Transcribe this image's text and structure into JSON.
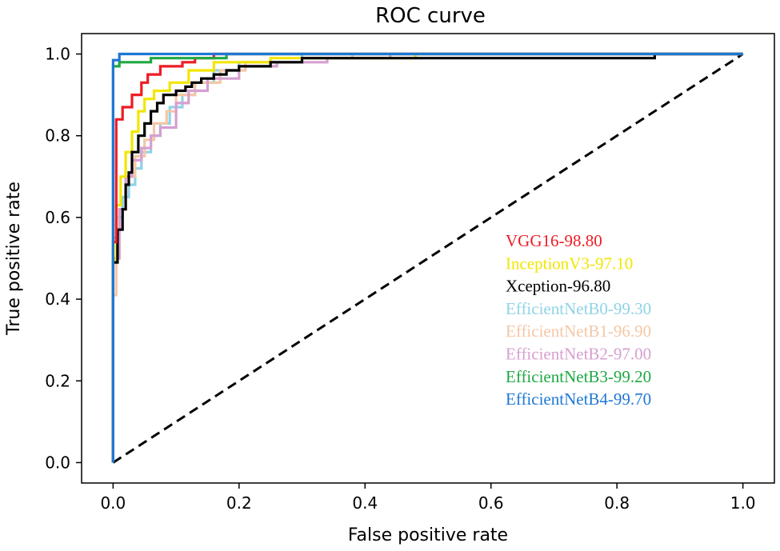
{
  "chart_data": {
    "type": "line",
    "title": "ROC curve",
    "xlabel": "False positive rate",
    "ylabel": "True positive rate",
    "xlim": [
      -0.05,
      1.05
    ],
    "ylim": [
      -0.05,
      1.05
    ],
    "xticks": [
      {
        "value": 0.0,
        "label": "0.0"
      },
      {
        "value": 0.2,
        "label": "0.2"
      },
      {
        "value": 0.4,
        "label": "0.4"
      },
      {
        "value": 0.6,
        "label": "0.6"
      },
      {
        "value": 0.8,
        "label": "0.8"
      },
      {
        "value": 1.0,
        "label": "1.0"
      }
    ],
    "yticks": [
      {
        "value": 0.0,
        "label": "0.0"
      },
      {
        "value": 0.2,
        "label": "0.2"
      },
      {
        "value": 0.4,
        "label": "0.4"
      },
      {
        "value": 0.6,
        "label": "0.6"
      },
      {
        "value": 0.8,
        "label": "0.8"
      },
      {
        "value": 1.0,
        "label": "1.0"
      }
    ],
    "grid": false,
    "legend_position": "center-right",
    "reference_line": {
      "name": "chance",
      "color": "#000000",
      "dashed": true,
      "points": [
        [
          0,
          0
        ],
        [
          1,
          1
        ]
      ]
    },
    "series": [
      {
        "name": "EfficientNetB0",
        "legend": "EfficientNetB0-99.30",
        "auc": 99.3,
        "color": "#8fd3e8",
        "points": [
          [
            0,
            0
          ],
          [
            0,
            0.55
          ],
          [
            0.005,
            0.55
          ],
          [
            0.005,
            0.6
          ],
          [
            0.015,
            0.6
          ],
          [
            0.015,
            0.65
          ],
          [
            0.025,
            0.65
          ],
          [
            0.025,
            0.68
          ],
          [
            0.035,
            0.68
          ],
          [
            0.035,
            0.72
          ],
          [
            0.045,
            0.72
          ],
          [
            0.045,
            0.76
          ],
          [
            0.06,
            0.76
          ],
          [
            0.06,
            0.8
          ],
          [
            0.075,
            0.8
          ],
          [
            0.075,
            0.83
          ],
          [
            0.09,
            0.83
          ],
          [
            0.09,
            0.87
          ],
          [
            0.11,
            0.87
          ],
          [
            0.11,
            0.9
          ],
          [
            0.13,
            0.9
          ],
          [
            0.13,
            0.93
          ],
          [
            0.16,
            0.93
          ],
          [
            0.16,
            0.96
          ],
          [
            0.2,
            0.96
          ],
          [
            0.2,
            0.98
          ],
          [
            0.3,
            0.98
          ],
          [
            0.3,
            1.0
          ],
          [
            1,
            1.0
          ]
        ]
      },
      {
        "name": "EfficientNetB1",
        "legend": "EfficientNetB1-96.90",
        "auc": 96.9,
        "color": "#f4c7a6",
        "points": [
          [
            0,
            0
          ],
          [
            0,
            0.41
          ],
          [
            0.005,
            0.41
          ],
          [
            0.005,
            0.5
          ],
          [
            0.01,
            0.5
          ],
          [
            0.01,
            0.62
          ],
          [
            0.02,
            0.62
          ],
          [
            0.02,
            0.7
          ],
          [
            0.035,
            0.7
          ],
          [
            0.035,
            0.75
          ],
          [
            0.05,
            0.75
          ],
          [
            0.05,
            0.79
          ],
          [
            0.065,
            0.79
          ],
          [
            0.065,
            0.83
          ],
          [
            0.085,
            0.83
          ],
          [
            0.085,
            0.86
          ],
          [
            0.1,
            0.86
          ],
          [
            0.1,
            0.9
          ],
          [
            0.13,
            0.9
          ],
          [
            0.13,
            0.93
          ],
          [
            0.17,
            0.93
          ],
          [
            0.17,
            0.96
          ],
          [
            0.21,
            0.96
          ],
          [
            0.21,
            0.98
          ],
          [
            0.3,
            0.98
          ],
          [
            0.3,
            0.99
          ],
          [
            0.38,
            0.99
          ],
          [
            0.38,
            1.0
          ],
          [
            1,
            1.0
          ]
        ]
      },
      {
        "name": "EfficientNetB2",
        "legend": "EfficientNetB2-97.00",
        "auc": 97.0,
        "color": "#d69fd0",
        "points": [
          [
            0,
            0
          ],
          [
            0,
            0.5
          ],
          [
            0.01,
            0.5
          ],
          [
            0.01,
            0.62
          ],
          [
            0.02,
            0.62
          ],
          [
            0.02,
            0.7
          ],
          [
            0.03,
            0.7
          ],
          [
            0.03,
            0.74
          ],
          [
            0.045,
            0.74
          ],
          [
            0.045,
            0.77
          ],
          [
            0.06,
            0.77
          ],
          [
            0.06,
            0.8
          ],
          [
            0.075,
            0.8
          ],
          [
            0.075,
            0.82
          ],
          [
            0.1,
            0.82
          ],
          [
            0.1,
            0.88
          ],
          [
            0.12,
            0.88
          ],
          [
            0.12,
            0.91
          ],
          [
            0.15,
            0.91
          ],
          [
            0.15,
            0.94
          ],
          [
            0.2,
            0.94
          ],
          [
            0.2,
            0.97
          ],
          [
            0.26,
            0.97
          ],
          [
            0.26,
            0.98
          ],
          [
            0.34,
            0.98
          ],
          [
            0.34,
            0.99
          ],
          [
            0.44,
            0.99
          ],
          [
            0.44,
            1.0
          ],
          [
            1,
            1.0
          ]
        ]
      },
      {
        "name": "InceptionV3",
        "legend": "InceptionV3-97.10",
        "auc": 97.1,
        "color": "#f2e600",
        "points": [
          [
            0,
            0
          ],
          [
            0,
            0.49
          ],
          [
            0.005,
            0.49
          ],
          [
            0.005,
            0.63
          ],
          [
            0.012,
            0.63
          ],
          [
            0.012,
            0.7
          ],
          [
            0.02,
            0.7
          ],
          [
            0.02,
            0.76
          ],
          [
            0.03,
            0.76
          ],
          [
            0.03,
            0.81
          ],
          [
            0.04,
            0.81
          ],
          [
            0.04,
            0.86
          ],
          [
            0.05,
            0.86
          ],
          [
            0.05,
            0.89
          ],
          [
            0.065,
            0.89
          ],
          [
            0.065,
            0.91
          ],
          [
            0.09,
            0.91
          ],
          [
            0.09,
            0.93
          ],
          [
            0.12,
            0.93
          ],
          [
            0.12,
            0.96
          ],
          [
            0.16,
            0.96
          ],
          [
            0.16,
            0.98
          ],
          [
            0.25,
            0.98
          ],
          [
            0.25,
            0.99
          ],
          [
            0.48,
            0.99
          ],
          [
            0.48,
            1.0
          ],
          [
            1,
            1.0
          ]
        ]
      },
      {
        "name": "Xception",
        "legend": "Xception-96.80",
        "auc": 96.8,
        "color": "#000000",
        "points": [
          [
            0,
            0
          ],
          [
            0,
            0.49
          ],
          [
            0.007,
            0.49
          ],
          [
            0.007,
            0.57
          ],
          [
            0.015,
            0.57
          ],
          [
            0.015,
            0.62
          ],
          [
            0.02,
            0.62
          ],
          [
            0.02,
            0.68
          ],
          [
            0.025,
            0.68
          ],
          [
            0.025,
            0.71
          ],
          [
            0.03,
            0.71
          ],
          [
            0.03,
            0.76
          ],
          [
            0.04,
            0.76
          ],
          [
            0.04,
            0.8
          ],
          [
            0.05,
            0.8
          ],
          [
            0.05,
            0.83
          ],
          [
            0.06,
            0.83
          ],
          [
            0.06,
            0.86
          ],
          [
            0.07,
            0.86
          ],
          [
            0.07,
            0.88
          ],
          [
            0.08,
            0.88
          ],
          [
            0.08,
            0.9
          ],
          [
            0.1,
            0.9
          ],
          [
            0.1,
            0.91
          ],
          [
            0.115,
            0.91
          ],
          [
            0.115,
            0.92
          ],
          [
            0.125,
            0.92
          ],
          [
            0.125,
            0.93
          ],
          [
            0.14,
            0.93
          ],
          [
            0.14,
            0.94
          ],
          [
            0.16,
            0.94
          ],
          [
            0.16,
            0.95
          ],
          [
            0.18,
            0.95
          ],
          [
            0.18,
            0.96
          ],
          [
            0.2,
            0.96
          ],
          [
            0.2,
            0.97
          ],
          [
            0.25,
            0.97
          ],
          [
            0.25,
            0.98
          ],
          [
            0.3,
            0.98
          ],
          [
            0.3,
            0.99
          ],
          [
            0.86,
            0.99
          ],
          [
            0.86,
            1.0
          ],
          [
            1,
            1.0
          ]
        ]
      },
      {
        "name": "VGG16",
        "legend": "VGG16-98.80",
        "auc": 98.8,
        "color": "#ee1c24",
        "points": [
          [
            0,
            0
          ],
          [
            0,
            0.54
          ],
          [
            0.005,
            0.54
          ],
          [
            0.005,
            0.84
          ],
          [
            0.015,
            0.84
          ],
          [
            0.015,
            0.87
          ],
          [
            0.03,
            0.87
          ],
          [
            0.03,
            0.9
          ],
          [
            0.045,
            0.9
          ],
          [
            0.045,
            0.93
          ],
          [
            0.055,
            0.93
          ],
          [
            0.055,
            0.95
          ],
          [
            0.075,
            0.95
          ],
          [
            0.075,
            0.97
          ],
          [
            0.11,
            0.97
          ],
          [
            0.11,
            0.98
          ],
          [
            0.13,
            0.98
          ],
          [
            0.13,
            0.99
          ],
          [
            0.16,
            0.99
          ],
          [
            0.16,
            1.0
          ],
          [
            1,
            1.0
          ]
        ]
      },
      {
        "name": "EfficientNetB3",
        "legend": "EfficientNetB3-99.20",
        "auc": 99.2,
        "color": "#1fa843",
        "points": [
          [
            0,
            0
          ],
          [
            0,
            0.97
          ],
          [
            0.01,
            0.97
          ],
          [
            0.01,
            0.98
          ],
          [
            0.06,
            0.98
          ],
          [
            0.06,
            0.99
          ],
          [
            0.18,
            0.99
          ],
          [
            0.18,
            1.0
          ],
          [
            1,
            1.0
          ]
        ]
      },
      {
        "name": "EfficientNetB4",
        "legend": "EfficientNetB4-99.70",
        "auc": 99.7,
        "color": "#1f77d4",
        "points": [
          [
            0,
            0
          ],
          [
            0,
            0.985
          ],
          [
            0.01,
            0.985
          ],
          [
            0.01,
            1.0
          ],
          [
            1,
            1.0
          ]
        ]
      }
    ],
    "legend_order": [
      "VGG16",
      "InceptionV3",
      "Xception",
      "EfficientNetB0",
      "EfficientNetB1",
      "EfficientNetB2",
      "EfficientNetB3",
      "EfficientNetB4"
    ]
  }
}
